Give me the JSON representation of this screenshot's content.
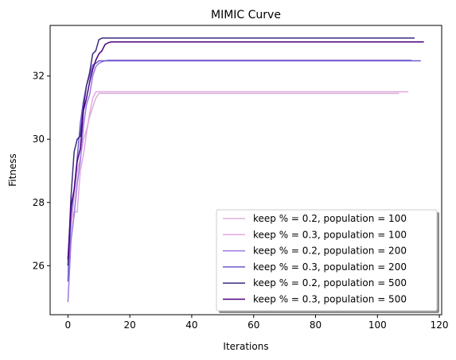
{
  "chart_data": {
    "type": "line",
    "title": "MIMIC Curve",
    "xlabel": "Iterations",
    "ylabel": "Fitness",
    "xlim": [
      -5.75,
      120.75
    ],
    "ylim": [
      24.45,
      33.6
    ],
    "xticks": [
      0,
      20,
      40,
      60,
      80,
      100,
      120
    ],
    "yticks": [
      26,
      28,
      30,
      32
    ],
    "grid": false,
    "legend": {
      "placement": "lower-right",
      "shadow": true
    },
    "series": [
      {
        "name": "keep % = 0.2, population = 100",
        "color": "#d8b4d8",
        "points": [
          [
            0,
            25.8
          ],
          [
            1,
            27.2
          ],
          [
            2,
            28.2
          ],
          [
            3,
            29.0
          ],
          [
            4,
            29.4
          ],
          [
            5,
            30.0
          ],
          [
            6,
            30.3
          ],
          [
            7,
            30.7
          ],
          [
            8,
            31.0
          ],
          [
            9,
            31.3
          ],
          [
            10,
            31.45
          ],
          [
            11,
            31.45
          ],
          [
            107,
            31.45
          ]
        ]
      },
      {
        "name": "keep % = 0.3, population = 100",
        "color": "#e3a6e0",
        "points": [
          [
            0,
            26.2
          ],
          [
            1,
            27.4
          ],
          [
            2,
            27.7
          ],
          [
            3,
            27.7
          ],
          [
            4,
            29.0
          ],
          [
            5,
            29.5
          ],
          [
            6,
            30.2
          ],
          [
            7,
            30.8
          ],
          [
            8,
            31.3
          ],
          [
            9,
            31.5
          ],
          [
            10,
            31.5
          ],
          [
            110,
            31.5
          ]
        ]
      },
      {
        "name": "keep % = 0.2, population = 200",
        "color": "#9a78e0",
        "points": [
          [
            0,
            24.85
          ],
          [
            1,
            26.8
          ],
          [
            2,
            27.6
          ],
          [
            3,
            28.6
          ],
          [
            4,
            29.3
          ],
          [
            5,
            30.4
          ],
          [
            6,
            31.1
          ],
          [
            7,
            31.4
          ],
          [
            8,
            32.0
          ],
          [
            9,
            32.3
          ],
          [
            10,
            32.4
          ],
          [
            11,
            32.45
          ],
          [
            12,
            32.48
          ],
          [
            13,
            32.5
          ],
          [
            111,
            32.5
          ]
        ]
      },
      {
        "name": "keep % = 0.3, population = 200",
        "color": "#6a5acd",
        "points": [
          [
            0,
            25.5
          ],
          [
            1,
            27.6
          ],
          [
            2,
            28.4
          ],
          [
            3,
            29.4
          ],
          [
            4,
            30.5
          ],
          [
            5,
            31.2
          ],
          [
            6,
            31.7
          ],
          [
            7,
            32.0
          ],
          [
            8,
            32.35
          ],
          [
            9,
            32.4
          ],
          [
            10,
            32.48
          ],
          [
            114,
            32.48
          ]
        ]
      },
      {
        "name": "keep % = 0.2, population = 500",
        "color": "#3b2a80",
        "points": [
          [
            0,
            26.0
          ],
          [
            1,
            28.2
          ],
          [
            2,
            29.6
          ],
          [
            3,
            30.0
          ],
          [
            4,
            30.1
          ],
          [
            5,
            31.0
          ],
          [
            6,
            31.7
          ],
          [
            7,
            32.1
          ],
          [
            8,
            32.7
          ],
          [
            9,
            32.8
          ],
          [
            10,
            33.15
          ],
          [
            11,
            33.2
          ],
          [
            12,
            33.2
          ],
          [
            112,
            33.2
          ]
        ]
      },
      {
        "name": "keep % = 0.3, population = 500",
        "color": "#4b0082",
        "points": [
          [
            0,
            26.2
          ],
          [
            1,
            27.9
          ],
          [
            2,
            28.4
          ],
          [
            3,
            29.3
          ],
          [
            4,
            29.7
          ],
          [
            5,
            30.9
          ],
          [
            6,
            31.3
          ],
          [
            7,
            31.8
          ],
          [
            8,
            32.2
          ],
          [
            9,
            32.5
          ],
          [
            10,
            32.7
          ],
          [
            11,
            32.8
          ],
          [
            12,
            33.0
          ],
          [
            13,
            33.05
          ],
          [
            14,
            33.08
          ],
          [
            115,
            33.08
          ]
        ]
      }
    ]
  }
}
